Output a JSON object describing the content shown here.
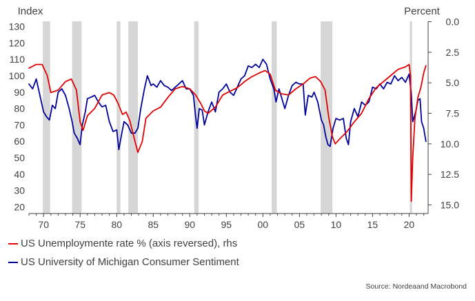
{
  "chart_data": {
    "type": "line",
    "left_axis_title": "Index",
    "right_axis_title": "Percent",
    "left_ticks": [
      130,
      120,
      110,
      100,
      90,
      80,
      70,
      60,
      50,
      40,
      30,
      20
    ],
    "right_ticks": [
      "0.0",
      "2.5",
      "5.0",
      "7.5",
      "10.0",
      "12.5",
      "15.0"
    ],
    "x_ticks": [
      {
        "label": "70",
        "year": 1970
      },
      {
        "label": "75",
        "year": 1975
      },
      {
        "label": "80",
        "year": 1980
      },
      {
        "label": "85",
        "year": 1985
      },
      {
        "label": "90",
        "year": 1990
      },
      {
        "label": "95",
        "year": 1995
      },
      {
        "label": "00",
        "year": 2000
      },
      {
        "label": "05",
        "year": 2005
      },
      {
        "label": "10",
        "year": 2010
      },
      {
        "label": "15",
        "year": 2015
      },
      {
        "label": "20",
        "year": 2020
      }
    ],
    "x_range": [
      1968,
      2022.6
    ],
    "left_range": [
      15,
      135
    ],
    "right_range": [
      0,
      16.1
    ],
    "recessions": [
      [
        1969.9,
        1970.9
      ],
      [
        1973.9,
        1975.2
      ],
      [
        1980.0,
        1980.5
      ],
      [
        1981.6,
        1982.9
      ],
      [
        1990.6,
        1991.2
      ],
      [
        2001.2,
        2001.9
      ],
      [
        2007.9,
        2009.5
      ],
      [
        2020.1,
        2020.4
      ]
    ],
    "series": [
      {
        "name": "US Unemploymente rate % (axis reversed), rhs",
        "color": "#e00000",
        "axis": "right",
        "x": [
          1968.0,
          1969.0,
          1969.8,
          1970.5,
          1971.0,
          1972.0,
          1973.0,
          1973.8,
          1974.5,
          1975.0,
          1975.4,
          1976.0,
          1977.0,
          1978.0,
          1979.0,
          1979.6,
          1980.2,
          1980.8,
          1981.3,
          1981.8,
          1982.5,
          1982.9,
          1983.5,
          1984.0,
          1985.0,
          1986.0,
          1987.0,
          1988.0,
          1989.0,
          1990.0,
          1990.8,
          1991.5,
          1992.0,
          1992.5,
          1993.5,
          1994.5,
          1995.5,
          1996.5,
          1997.5,
          1998.5,
          1999.5,
          2000.3,
          2001.0,
          2001.7,
          2002.5,
          2003.5,
          2004.5,
          2005.5,
          2006.5,
          2007.2,
          2007.9,
          2008.5,
          2009.0,
          2009.5,
          2009.9,
          2010.5,
          2011.5,
          2012.5,
          2013.5,
          2014.5,
          2015.5,
          2016.5,
          2017.5,
          2018.5,
          2019.5,
          2020.0,
          2020.2,
          2020.3,
          2020.5,
          2020.8,
          2021.2,
          2021.6,
          2022.0,
          2022.3
        ],
        "values": [
          3.8,
          3.5,
          3.5,
          4.4,
          5.8,
          5.6,
          4.9,
          4.7,
          5.6,
          8.2,
          8.9,
          7.7,
          7.1,
          6.0,
          5.8,
          6.0,
          6.7,
          7.6,
          7.4,
          8.1,
          9.8,
          10.7,
          9.8,
          7.9,
          7.3,
          7.0,
          6.2,
          5.5,
          5.3,
          5.5,
          6.0,
          6.7,
          7.3,
          7.5,
          7.0,
          6.0,
          5.7,
          5.4,
          4.9,
          4.5,
          4.2,
          4.0,
          4.3,
          5.6,
          5.9,
          6.0,
          5.5,
          5.1,
          4.6,
          4.5,
          4.9,
          5.6,
          7.8,
          9.4,
          10.0,
          9.6,
          9.0,
          8.2,
          7.5,
          6.3,
          5.4,
          4.9,
          4.4,
          3.9,
          3.7,
          3.5,
          4.4,
          14.7,
          11.1,
          7.9,
          6.2,
          5.4,
          4.2,
          3.6
        ]
      },
      {
        "name": "US University of Michigan Consumer Sentiment",
        "color": "#00009a",
        "axis": "left",
        "x": [
          1968.0,
          1968.5,
          1969.0,
          1969.5,
          1970.0,
          1970.4,
          1970.8,
          1971.2,
          1971.6,
          1972.0,
          1972.5,
          1973.0,
          1973.5,
          1973.9,
          1974.2,
          1974.6,
          1975.0,
          1975.3,
          1975.7,
          1976.0,
          1976.5,
          1977.0,
          1977.5,
          1978.0,
          1978.5,
          1979.0,
          1979.5,
          1980.0,
          1980.3,
          1980.7,
          1981.0,
          1981.5,
          1982.0,
          1982.5,
          1982.9,
          1983.3,
          1983.8,
          1984.2,
          1984.7,
          1985.0,
          1985.5,
          1986.0,
          1986.5,
          1987.0,
          1987.5,
          1988.0,
          1988.5,
          1989.0,
          1989.5,
          1990.0,
          1990.5,
          1990.8,
          1991.0,
          1991.3,
          1991.7,
          1992.0,
          1992.5,
          1993.0,
          1993.5,
          1994.0,
          1994.5,
          1995.0,
          1995.5,
          1996.0,
          1996.5,
          1997.0,
          1997.5,
          1998.0,
          1998.5,
          1999.0,
          1999.5,
          2000.0,
          2000.5,
          2001.0,
          2001.5,
          2001.8,
          2002.2,
          2002.6,
          2003.0,
          2003.5,
          2004.0,
          2004.5,
          2005.0,
          2005.5,
          2005.8,
          2006.2,
          2006.7,
          2007.0,
          2007.5,
          2008.0,
          2008.3,
          2008.6,
          2008.9,
          2009.2,
          2009.6,
          2010.0,
          2010.5,
          2011.0,
          2011.4,
          2011.7,
          2012.0,
          2012.5,
          2013.0,
          2013.5,
          2014.0,
          2014.5,
          2015.0,
          2015.5,
          2016.0,
          2016.5,
          2017.0,
          2017.5,
          2018.0,
          2018.5,
          2019.0,
          2019.5,
          2020.0,
          2020.3,
          2020.5,
          2020.9,
          2021.2,
          2021.5,
          2021.7,
          2022.0,
          2022.3
        ],
        "values": [
          95,
          92,
          98,
          88,
          78,
          75,
          73,
          82,
          80,
          90,
          92,
          88,
          80,
          72,
          65,
          62,
          58,
          70,
          78,
          86,
          87,
          88,
          84,
          81,
          82,
          72,
          66,
          67,
          55,
          65,
          72,
          70,
          65,
          65,
          68,
          80,
          92,
          100,
          94,
          95,
          93,
          97,
          94,
          93,
          91,
          93,
          95,
          97,
          92,
          92,
          88,
          75,
          68,
          80,
          79,
          70,
          78,
          84,
          78,
          90,
          92,
          95,
          90,
          88,
          93,
          98,
          100,
          106,
          105,
          107,
          105,
          110,
          107,
          98,
          92,
          84,
          92,
          86,
          80,
          88,
          94,
          96,
          95,
          95,
          76,
          88,
          87,
          90,
          84,
          73,
          70,
          63,
          58,
          57,
          68,
          74,
          73,
          74,
          62,
          58,
          72,
          80,
          75,
          84,
          82,
          84,
          93,
          92,
          95,
          92,
          96,
          95,
          100,
          97,
          99,
          96,
          101,
          89,
          72,
          78,
          85,
          86,
          72,
          68,
          60
        ]
      }
    ]
  },
  "legend": {
    "unemployment_label": "US Unemploymente rate % (axis reversed), rhs",
    "sentiment_label": "US University of Michigan Consumer Sentiment"
  },
  "source": "Source: Nordeaand Macrobond",
  "colors": {
    "unemployment": "#e00000",
    "sentiment": "#00009a",
    "recession": "#d6d6d6",
    "axis": "#404040"
  }
}
